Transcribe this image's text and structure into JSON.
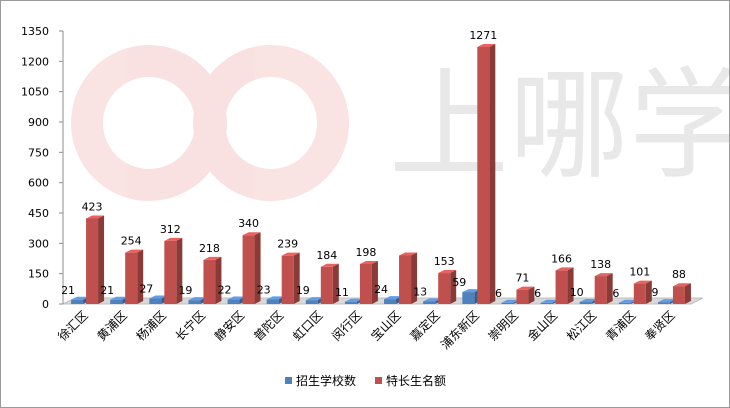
{
  "watermark": {
    "text": "上哪学"
  },
  "chart_data": {
    "type": "bar",
    "style": "3d-clustered-column",
    "categories": [
      "徐汇区",
      "黄浦区",
      "杨浦区",
      "长宁区",
      "静安区",
      "普陀区",
      "虹口区",
      "闵行区",
      "宝山区",
      "嘉定区",
      "浦东新区",
      "崇明区",
      "金山区",
      "松江区",
      "青浦区",
      "奉贤区"
    ],
    "series": [
      {
        "name": "招生学校数",
        "color": "#4f81bd",
        "values": [
          21,
          21,
          27,
          19,
          22,
          23,
          19,
          11,
          24,
          13,
          59,
          6,
          6,
          10,
          6,
          9
        ]
      },
      {
        "name": "特长生名额",
        "color": "#c0504d",
        "values": [
          423,
          254,
          312,
          218,
          340,
          239,
          184,
          198,
          240,
          153,
          1271,
          71,
          166,
          138,
          101,
          88
        ],
        "labels": [
          "423",
          "254",
          "312",
          "218",
          "340",
          "239",
          "184",
          "198",
          "",
          "153",
          "1271",
          "71",
          "166",
          "138",
          "101",
          "88"
        ]
      }
    ],
    "yticks": [
      "0",
      "150",
      "300",
      "450",
      "600",
      "750",
      "900",
      "1050",
      "1200",
      "1350"
    ],
    "ylim": [
      0,
      1350
    ],
    "grid": false,
    "legend_position": "bottom"
  }
}
